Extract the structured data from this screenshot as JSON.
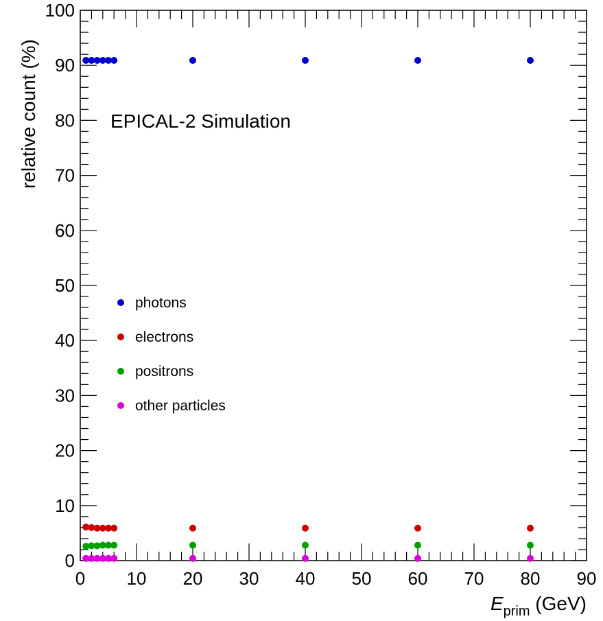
{
  "chart_data": {
    "type": "scatter",
    "title": "",
    "annotation": "EPICAL-2 Simulation",
    "xlabel": {
      "main": "E",
      "sub": "prim",
      "unit": " (GeV)"
    },
    "ylabel": "relative count (%)",
    "xlim": [
      0,
      90
    ],
    "ylim": [
      0,
      100
    ],
    "xticks": [
      0,
      10,
      20,
      30,
      40,
      50,
      60,
      70,
      80,
      90
    ],
    "yticks": [
      0,
      10,
      20,
      30,
      40,
      50,
      60,
      70,
      80,
      90,
      100
    ],
    "legend_position": "center-left",
    "series": [
      {
        "name": "photons",
        "color": "#0000cc",
        "x": [
          1,
          2,
          3,
          4,
          5,
          6,
          20,
          40,
          60,
          80
        ],
        "y": [
          90.9,
          90.9,
          90.9,
          90.9,
          90.9,
          90.9,
          90.9,
          90.9,
          90.9,
          90.9
        ]
      },
      {
        "name": "electrons",
        "color": "#cc0000",
        "x": [
          1,
          2,
          3,
          4,
          5,
          6,
          20,
          40,
          60,
          80
        ],
        "y": [
          6.1,
          6.0,
          5.9,
          5.9,
          5.9,
          5.9,
          5.9,
          5.9,
          5.9,
          5.9
        ]
      },
      {
        "name": "positrons",
        "color": "#00a000",
        "x": [
          1,
          2,
          3,
          4,
          5,
          6,
          20,
          40,
          60,
          80
        ],
        "y": [
          2.6,
          2.7,
          2.7,
          2.8,
          2.8,
          2.8,
          2.8,
          2.8,
          2.8,
          2.8
        ]
      },
      {
        "name": "other particles",
        "color": "#dd00dd",
        "x": [
          1,
          2,
          3,
          4,
          5,
          6,
          20,
          40,
          60,
          80
        ],
        "y": [
          0.4,
          0.4,
          0.4,
          0.4,
          0.4,
          0.4,
          0.4,
          0.4,
          0.4,
          0.4
        ]
      }
    ]
  }
}
